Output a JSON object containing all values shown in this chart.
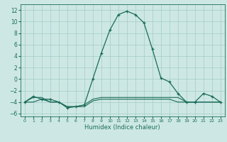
{
  "x": [
    0,
    1,
    2,
    3,
    4,
    5,
    6,
    7,
    8,
    9,
    10,
    11,
    12,
    13,
    14,
    15,
    16,
    17,
    18,
    19,
    20,
    21,
    22,
    23
  ],
  "humidex": [
    -4,
    -3,
    -3.5,
    -3.5,
    -4,
    -5,
    -4.8,
    -4.5,
    0,
    4.5,
    8.5,
    11.2,
    11.8,
    11.2,
    9.8,
    5.2,
    0.2,
    -0.5,
    -2.5,
    -4,
    -4,
    -2.5,
    -3,
    -4
  ],
  "line2": [
    -4,
    -4,
    -3.5,
    -4,
    -4,
    -4.8,
    -4.8,
    -4.8,
    -3.8,
    -3.5,
    -3.5,
    -3.5,
    -3.5,
    -3.5,
    -3.5,
    -3.5,
    -3.5,
    -3.5,
    -4,
    -4,
    -4,
    -4,
    -4,
    -4
  ],
  "line3": [
    -4,
    -3.2,
    -3.2,
    -4,
    -4,
    -4.8,
    -4.8,
    -4.5,
    -3.5,
    -3.2,
    -3.2,
    -3.2,
    -3.2,
    -3.2,
    -3.2,
    -3.2,
    -3.2,
    -3.2,
    -3.2,
    -4,
    -4,
    -4,
    -4,
    -4
  ],
  "color": "#1a6b5a",
  "bg_color": "#cde8e4",
  "grid_color": "#aad0cc",
  "xlabel": "Humidex (Indice chaleur)",
  "xlim": [
    -0.5,
    23.5
  ],
  "ylim": [
    -6.5,
    13.0
  ],
  "yticks": [
    -6,
    -4,
    -2,
    0,
    2,
    4,
    6,
    8,
    10,
    12
  ],
  "xticks": [
    0,
    1,
    2,
    3,
    4,
    5,
    6,
    7,
    8,
    9,
    10,
    11,
    12,
    13,
    14,
    15,
    16,
    17,
    18,
    19,
    20,
    21,
    22,
    23
  ]
}
